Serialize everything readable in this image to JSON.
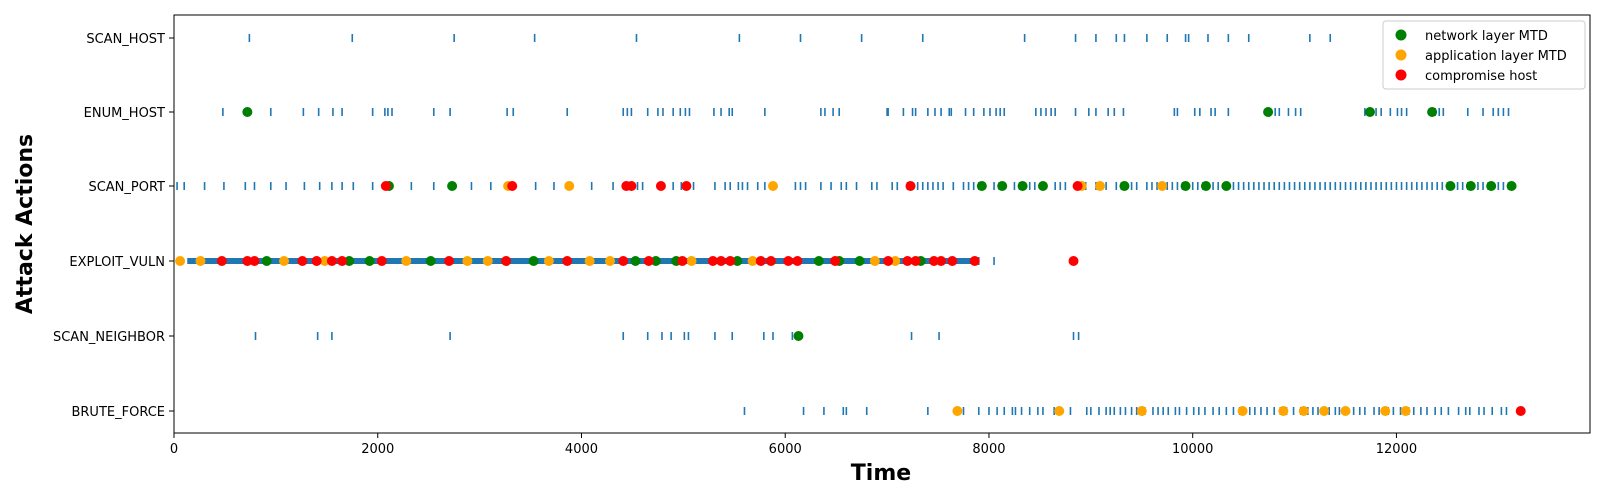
{
  "chart_data": {
    "type": "scatter",
    "xlabel": "Time",
    "ylabel": "Attack Actions",
    "xlim": [
      0,
      13900
    ],
    "xticks": [
      0,
      2000,
      4000,
      6000,
      8000,
      10000,
      12000
    ],
    "categories": [
      "SCAN_HOST",
      "ENUM_HOST",
      "SCAN_PORT",
      "EXPLOIT_VULN",
      "SCAN_NEIGHBOR",
      "BRUTE_FORCE"
    ],
    "legend_position": "top-right",
    "grid": false,
    "action_color": "#1f77b4",
    "actions": {
      "SCAN_HOST": [
        740,
        1750,
        2750,
        3540,
        4540,
        5550,
        6150,
        6750,
        7350,
        8350,
        8850,
        9050,
        9250,
        9330,
        9550,
        9750,
        9930,
        9960,
        10150,
        10350,
        10550,
        11150,
        11350
      ],
      "ENUM_HOST": [
        480,
        730,
        950,
        1270,
        1420,
        1560,
        1650,
        1950,
        2070,
        2100,
        2140,
        2550,
        2710,
        3270,
        3330,
        3860,
        4410,
        4450,
        4490,
        4650,
        4750,
        4800,
        4900,
        4970,
        5020,
        5060,
        5300,
        5370,
        5450,
        5480,
        5800,
        6350,
        6390,
        6470,
        6530,
        7000,
        7010,
        7160,
        7250,
        7280,
        7400,
        7470,
        7530,
        7610,
        7630,
        7770,
        7850,
        7950,
        8010,
        8070,
        8110,
        8150,
        8460,
        8510,
        8560,
        8610,
        8650,
        8850,
        8980,
        9050,
        9170,
        9230,
        9320,
        9820,
        9850,
        10020,
        10070,
        10180,
        10220,
        10350,
        10750,
        10810,
        10850,
        10940,
        11010,
        11060,
        11690,
        11760,
        11800,
        11850,
        11940,
        12010,
        12050,
        12100,
        12380,
        12420,
        12460,
        12700,
        12850,
        12950,
        13000,
        13050,
        13100
      ],
      "SCAN_PORT": [
        30,
        100,
        300,
        490,
        700,
        790,
        950,
        1100,
        1280,
        1430,
        1550,
        1650,
        1760,
        1950,
        2070,
        2100,
        2130,
        2330,
        2550,
        2710,
        2750,
        2920,
        3110,
        3300,
        3320,
        3550,
        3730,
        3880,
        4100,
        4310,
        4450,
        4480,
        4550,
        4600,
        4800,
        4900,
        4980,
        5020,
        5100,
        5310,
        5410,
        5460,
        5540,
        5580,
        5630,
        5730,
        5800,
        5900,
        6100,
        6150,
        6200,
        6350,
        6450,
        6550,
        6600,
        6700,
        6850,
        6900,
        7050,
        7100,
        7200,
        7250,
        7300,
        7350,
        7400,
        7450,
        7500,
        7550,
        7650,
        7750,
        7800,
        7850,
        7900,
        7950,
        8050,
        8100,
        8150,
        8250,
        8300,
        8350,
        8400,
        8450,
        8550,
        8650,
        8700,
        8750,
        8850,
        8900,
        8950,
        9050,
        9100,
        9150,
        9250,
        9300,
        9350,
        9400,
        9450,
        9550,
        9600,
        9650,
        9700,
        9750,
        9800,
        9850,
        9900,
        9950,
        10000,
        10050,
        10100,
        10150,
        10200,
        10250,
        10350,
        10400,
        10450,
        10500,
        10550,
        10600,
        10650,
        10700,
        10750,
        10800,
        10850,
        10900,
        10950,
        11000,
        11050,
        11100,
        11150,
        11200,
        11250,
        11300,
        11350,
        11400,
        11450,
        11500,
        11550,
        11600,
        11650,
        11700,
        11750,
        11800,
        11850,
        11900,
        11950,
        12000,
        12050,
        12100,
        12150,
        12200,
        12250,
        12300,
        12350,
        12400,
        12450,
        12500,
        12550,
        12600,
        12650,
        12700,
        12750,
        12800,
        12850,
        12900,
        12950,
        13000,
        13050,
        13100,
        13150
      ],
      "EXPLOIT_VULN": [
        7900,
        8050
      ],
      "SCAN_NEIGHBOR": [
        800,
        1410,
        1550,
        2710,
        4410,
        4650,
        4790,
        4880,
        5010,
        5050,
        5310,
        5480,
        5790,
        5880,
        6070,
        7240,
        7510,
        8830,
        8880
      ],
      "BRUTE_FORCE": [
        5600,
        6180,
        6380,
        6570,
        6600,
        6800,
        7400,
        7750,
        7900,
        8000,
        8080,
        8150,
        8230,
        8260,
        8320,
        8400,
        8480,
        8530,
        8640,
        8690,
        8800,
        8960,
        9000,
        9080,
        9150,
        9190,
        9230,
        9290,
        9340,
        9400,
        9450,
        9530,
        9610,
        9660,
        9710,
        9760,
        9830,
        9870,
        9940,
        10010,
        10060,
        10120,
        10200,
        10260,
        10330,
        10400,
        10460,
        10560,
        10610,
        10670,
        10730,
        10800,
        10860,
        10920,
        10990,
        11060,
        11130,
        11180,
        11230,
        11300,
        11340,
        11400,
        11440,
        11520,
        11580,
        11640,
        11690,
        11780,
        11830,
        11920,
        11970,
        12040,
        12120,
        12170,
        12240,
        12300,
        12380,
        12440,
        12510,
        12610,
        12680,
        12720,
        12810,
        12860,
        12940,
        13030,
        13080
      ]
    },
    "exploit_dense_range": [
      130,
      7850
    ],
    "series": [
      {
        "name": "network layer MTD",
        "color": "#008000",
        "points": [
          [
            "ENUM_HOST",
            720
          ],
          [
            "ENUM_HOST",
            10740
          ],
          [
            "ENUM_HOST",
            11740
          ],
          [
            "ENUM_HOST",
            12350
          ],
          [
            "SCAN_PORT",
            2110
          ],
          [
            "SCAN_PORT",
            2730
          ],
          [
            "SCAN_PORT",
            7930
          ],
          [
            "SCAN_PORT",
            8130
          ],
          [
            "SCAN_PORT",
            8330
          ],
          [
            "SCAN_PORT",
            8530
          ],
          [
            "SCAN_PORT",
            9330
          ],
          [
            "SCAN_PORT",
            9930
          ],
          [
            "SCAN_PORT",
            10130
          ],
          [
            "SCAN_PORT",
            10330
          ],
          [
            "SCAN_PORT",
            12530
          ],
          [
            "SCAN_PORT",
            12730
          ],
          [
            "SCAN_PORT",
            12930
          ],
          [
            "SCAN_PORT",
            13130
          ],
          [
            "EXPLOIT_VULN",
            910
          ],
          [
            "EXPLOIT_VULN",
            1720
          ],
          [
            "EXPLOIT_VULN",
            1920
          ],
          [
            "EXPLOIT_VULN",
            2520
          ],
          [
            "EXPLOIT_VULN",
            3530
          ],
          [
            "EXPLOIT_VULN",
            4530
          ],
          [
            "EXPLOIT_VULN",
            4730
          ],
          [
            "EXPLOIT_VULN",
            4930
          ],
          [
            "EXPLOIT_VULN",
            5530
          ],
          [
            "EXPLOIT_VULN",
            6330
          ],
          [
            "EXPLOIT_VULN",
            6530
          ],
          [
            "EXPLOIT_VULN",
            6730
          ],
          [
            "EXPLOIT_VULN",
            7330
          ],
          [
            "SCAN_NEIGHBOR",
            6130
          ]
        ]
      },
      {
        "name": "application layer MTD",
        "color": "#ffa500",
        "points": [
          [
            "SCAN_PORT",
            3280
          ],
          [
            "SCAN_PORT",
            3880
          ],
          [
            "SCAN_PORT",
            5880
          ],
          [
            "SCAN_PORT",
            8910
          ],
          [
            "SCAN_PORT",
            9090
          ],
          [
            "SCAN_PORT",
            9700
          ],
          [
            "EXPLOIT_VULN",
            60
          ],
          [
            "EXPLOIT_VULN",
            260
          ],
          [
            "EXPLOIT_VULN",
            1080
          ],
          [
            "EXPLOIT_VULN",
            1480
          ],
          [
            "EXPLOIT_VULN",
            2280
          ],
          [
            "EXPLOIT_VULN",
            2880
          ],
          [
            "EXPLOIT_VULN",
            3080
          ],
          [
            "EXPLOIT_VULN",
            3680
          ],
          [
            "EXPLOIT_VULN",
            4080
          ],
          [
            "EXPLOIT_VULN",
            4280
          ],
          [
            "EXPLOIT_VULN",
            5080
          ],
          [
            "EXPLOIT_VULN",
            5680
          ],
          [
            "EXPLOIT_VULN",
            6880
          ],
          [
            "EXPLOIT_VULN",
            7080
          ],
          [
            "BRUTE_FORCE",
            7690
          ],
          [
            "BRUTE_FORCE",
            8690
          ],
          [
            "BRUTE_FORCE",
            9500
          ],
          [
            "BRUTE_FORCE",
            10490
          ],
          [
            "BRUTE_FORCE",
            10890
          ],
          [
            "BRUTE_FORCE",
            11090
          ],
          [
            "BRUTE_FORCE",
            11290
          ],
          [
            "BRUTE_FORCE",
            11500
          ],
          [
            "BRUTE_FORCE",
            11890
          ],
          [
            "BRUTE_FORCE",
            12090
          ]
        ]
      },
      {
        "name": "compromise host",
        "color": "#ff0000",
        "points": [
          [
            "SCAN_PORT",
            2080
          ],
          [
            "SCAN_PORT",
            3320
          ],
          [
            "SCAN_PORT",
            4440
          ],
          [
            "SCAN_PORT",
            4490
          ],
          [
            "SCAN_PORT",
            4780
          ],
          [
            "SCAN_PORT",
            5030
          ],
          [
            "SCAN_PORT",
            7230
          ],
          [
            "SCAN_PORT",
            8870
          ],
          [
            "EXPLOIT_VULN",
            470
          ],
          [
            "EXPLOIT_VULN",
            720
          ],
          [
            "EXPLOIT_VULN",
            790
          ],
          [
            "EXPLOIT_VULN",
            1260
          ],
          [
            "EXPLOIT_VULN",
            1400
          ],
          [
            "EXPLOIT_VULN",
            1550
          ],
          [
            "EXPLOIT_VULN",
            1650
          ],
          [
            "EXPLOIT_VULN",
            2040
          ],
          [
            "EXPLOIT_VULN",
            2700
          ],
          [
            "EXPLOIT_VULN",
            3260
          ],
          [
            "EXPLOIT_VULN",
            3860
          ],
          [
            "EXPLOIT_VULN",
            4410
          ],
          [
            "EXPLOIT_VULN",
            4660
          ],
          [
            "EXPLOIT_VULN",
            4990
          ],
          [
            "EXPLOIT_VULN",
            5290
          ],
          [
            "EXPLOIT_VULN",
            5370
          ],
          [
            "EXPLOIT_VULN",
            5460
          ],
          [
            "EXPLOIT_VULN",
            5760
          ],
          [
            "EXPLOIT_VULN",
            5860
          ],
          [
            "EXPLOIT_VULN",
            6030
          ],
          [
            "EXPLOIT_VULN",
            6120
          ],
          [
            "EXPLOIT_VULN",
            6490
          ],
          [
            "EXPLOIT_VULN",
            7010
          ],
          [
            "EXPLOIT_VULN",
            7200
          ],
          [
            "EXPLOIT_VULN",
            7280
          ],
          [
            "EXPLOIT_VULN",
            7460
          ],
          [
            "EXPLOIT_VULN",
            7530
          ],
          [
            "EXPLOIT_VULN",
            7640
          ],
          [
            "EXPLOIT_VULN",
            7860
          ],
          [
            "EXPLOIT_VULN",
            8830
          ],
          [
            "BRUTE_FORCE",
            13220
          ]
        ]
      }
    ]
  }
}
